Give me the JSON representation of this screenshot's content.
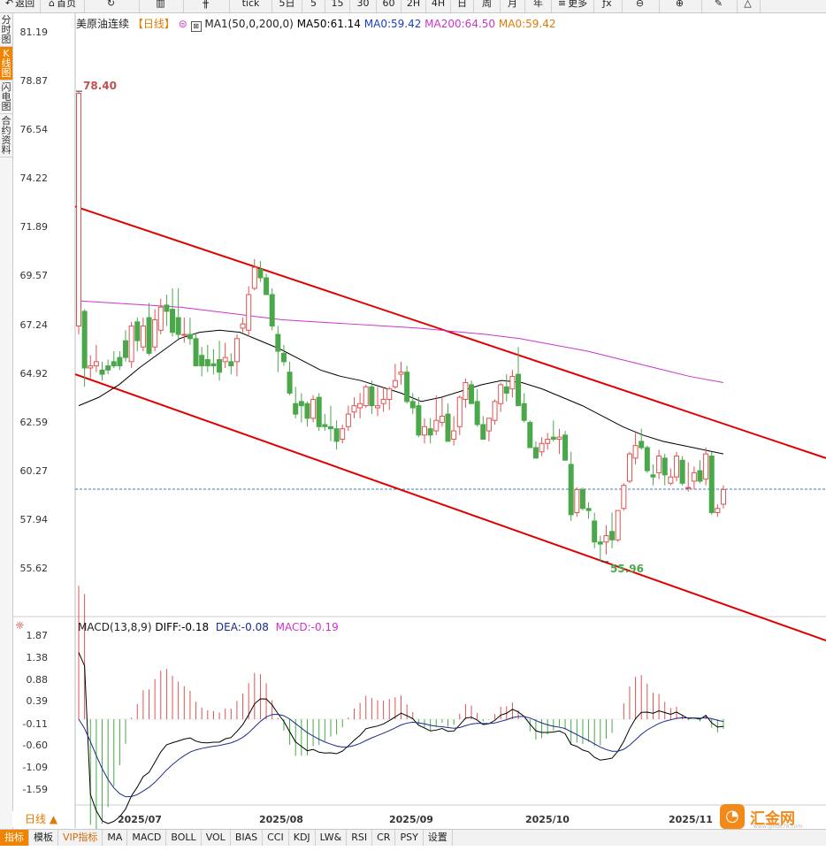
{
  "toolbar": {
    "items": [
      {
        "label": "返回",
        "icon": "back-arrow-icon"
      },
      {
        "label": "首页",
        "icon": "home-icon"
      },
      {
        "label": "",
        "icon": "refresh-icon"
      },
      {
        "label": "",
        "icon": "bar-chart-icon"
      },
      {
        "label": "",
        "icon": "candlestick-icon"
      },
      {
        "label": "tick",
        "icon": ""
      },
      {
        "label": "5日",
        "icon": ""
      },
      {
        "label": "5",
        "icon": ""
      },
      {
        "label": "15",
        "icon": ""
      },
      {
        "label": "30",
        "icon": ""
      },
      {
        "label": "60",
        "icon": ""
      },
      {
        "label": "2H",
        "icon": ""
      },
      {
        "label": "4H",
        "icon": ""
      },
      {
        "label": "日",
        "icon": ""
      },
      {
        "label": "周",
        "icon": ""
      },
      {
        "label": "月",
        "icon": ""
      },
      {
        "label": "年",
        "icon": ""
      },
      {
        "label": "更多",
        "icon": "menu-icon"
      },
      {
        "label": "",
        "icon": "formula-icon"
      },
      {
        "label": "",
        "icon": "zoom-out-icon"
      },
      {
        "label": "",
        "icon": "zoom-in-icon"
      },
      {
        "label": "",
        "icon": "pen-icon"
      },
      {
        "label": "",
        "icon": "triangle-icon"
      }
    ]
  },
  "sidebar": {
    "items": [
      {
        "label": "分\n时\n图",
        "active": false
      },
      {
        "label": "K\n线\n图",
        "active": true
      },
      {
        "label": "闪\n电\n图",
        "active": false
      },
      {
        "label": "合\n约\n资\n料",
        "active": false
      }
    ]
  },
  "legend": {
    "instrument": "美原油连续",
    "period": "【日线】",
    "ma_settings": "MA1(50,0,200,0)",
    "ma50": "MA50:61.14",
    "ma0_blue": "MA0:59.42",
    "ma200": "MA200:64.50",
    "ma0_orange": "MA0:59.42"
  },
  "macd_legend": {
    "name": "MACD(13,8,9)",
    "diff": "DIFF:-0.18",
    "dea": "DEA:-0.08",
    "macd": "MACD:-0.19"
  },
  "price_axis": [
    "81.19",
    "78.87",
    "76.54",
    "74.22",
    "71.89",
    "69.57",
    "67.24",
    "64.92",
    "62.59",
    "60.27",
    "57.94",
    "55.62"
  ],
  "macd_axis": [
    "1.87",
    "1.38",
    "0.88",
    "0.39",
    "-0.11",
    "-0.60",
    "-1.09",
    "-1.59"
  ],
  "x_axis": [
    "2025/07",
    "2025/08",
    "2025/09",
    "2025/10",
    "2025/11"
  ],
  "annotations": {
    "high": "78.40",
    "low": "55.96"
  },
  "bottom_bar": {
    "period_button": "日线 ▲",
    "tabs": [
      "指标",
      "模板",
      "VIP指标",
      "MA",
      "MACD",
      "BOLL",
      "VOL",
      "BIAS",
      "CCI",
      "KDJ",
      "LW&",
      "RSI",
      "CR",
      "PSY",
      "设置"
    ]
  },
  "logo": {
    "name": "汇金网",
    "url": "www.gold678.com"
  },
  "colors": {
    "up": "#e05252",
    "down": "#4aa84a",
    "ma50": "#000000",
    "ma200": "#cc33cc",
    "channel": "#e00000",
    "current_price_line": "#3a79c6",
    "accent": "#f08300",
    "diff": "#000000",
    "dea": "#1a2b8a"
  },
  "chart_data": {
    "type": "candlestick",
    "price_range": [
      55.62,
      81.19
    ],
    "current_price": 59.42,
    "candles_ohlc_approx": [
      [
        67.2,
        78.4,
        66.8,
        78.3
      ],
      [
        67.9,
        68.0,
        64.3,
        65.2
      ],
      [
        65.2,
        65.8,
        64.7,
        65.3
      ],
      [
        65.3,
        66.3,
        65.0,
        65.5
      ],
      [
        65.1,
        65.5,
        64.6,
        64.9
      ],
      [
        65.3,
        65.6,
        64.9,
        65.1
      ],
      [
        65.5,
        66.0,
        65.2,
        65.3
      ],
      [
        65.7,
        66.0,
        65.1,
        65.3
      ],
      [
        66.5,
        67.0,
        65.5,
        65.7
      ],
      [
        65.5,
        67.4,
        65.2,
        67.2
      ],
      [
        67.4,
        67.6,
        66.0,
        66.5
      ],
      [
        66.2,
        67.6,
        66.0,
        67.2
      ],
      [
        67.6,
        68.3,
        65.8,
        65.9
      ],
      [
        66.2,
        68.0,
        66.0,
        67.5
      ],
      [
        67.0,
        68.5,
        66.8,
        68.1
      ],
      [
        68.2,
        68.7,
        67.2,
        67.9
      ],
      [
        68.0,
        69.0,
        66.7,
        66.9
      ],
      [
        67.6,
        69.0,
        66.6,
        66.8
      ],
      [
        66.8,
        67.6,
        66.4,
        66.8
      ],
      [
        66.8,
        67.6,
        66.3,
        66.6
      ],
      [
        66.6,
        66.9,
        65.3,
        65.3
      ],
      [
        65.8,
        66.2,
        64.8,
        65.3
      ],
      [
        65.6,
        66.3,
        65.0,
        65.3
      ],
      [
        65.4,
        66.1,
        64.9,
        65.3
      ],
      [
        65.6,
        66.5,
        64.6,
        65.0
      ],
      [
        65.5,
        66.4,
        65.2,
        65.7
      ],
      [
        65.5,
        65.9,
        64.9,
        65.3
      ],
      [
        65.5,
        66.8,
        64.8,
        66.6
      ],
      [
        67.1,
        67.6,
        66.9,
        67.3
      ],
      [
        67.0,
        69.1,
        66.7,
        68.7
      ],
      [
        69.0,
        70.4,
        68.9,
        70.0
      ],
      [
        69.9,
        70.3,
        69.3,
        69.5
      ],
      [
        69.5,
        69.7,
        68.7,
        68.7
      ],
      [
        68.7,
        69.0,
        67.0,
        67.2
      ],
      [
        66.8,
        67.2,
        65.0,
        66.0
      ],
      [
        65.9,
        66.3,
        65.3,
        65.5
      ],
      [
        65.0,
        65.5,
        63.9,
        64.0
      ],
      [
        63.5,
        64.3,
        62.8,
        63.0
      ],
      [
        63.6,
        64.0,
        62.6,
        63.4
      ],
      [
        63.5,
        63.6,
        62.4,
        62.8
      ],
      [
        62.8,
        63.9,
        62.6,
        63.7
      ],
      [
        63.8,
        64.0,
        62.2,
        62.4
      ],
      [
        62.5,
        63.0,
        62.2,
        62.4
      ],
      [
        62.4,
        63.4,
        61.7,
        62.3
      ],
      [
        62.3,
        62.7,
        61.3,
        61.7
      ],
      [
        61.8,
        62.5,
        61.6,
        62.3
      ],
      [
        62.4,
        63.4,
        62.2,
        63.0
      ],
      [
        63.1,
        63.8,
        62.8,
        63.4
      ],
      [
        63.3,
        64.0,
        62.8,
        63.5
      ],
      [
        63.4,
        64.4,
        63.3,
        64.3
      ],
      [
        64.3,
        64.6,
        63.0,
        63.4
      ],
      [
        63.3,
        64.3,
        62.9,
        63.4
      ],
      [
        63.5,
        64.3,
        63.1,
        63.7
      ],
      [
        63.7,
        64.3,
        63.2,
        64.2
      ],
      [
        64.3,
        65.4,
        64.2,
        64.6
      ],
      [
        64.9,
        65.5,
        64.4,
        65.0
      ],
      [
        65.0,
        65.3,
        63.5,
        63.6
      ],
      [
        63.6,
        64.0,
        63.0,
        63.3
      ],
      [
        63.4,
        63.8,
        61.9,
        62.0
      ],
      [
        62.0,
        62.8,
        61.6,
        62.4
      ],
      [
        62.3,
        62.8,
        61.6,
        62.0
      ],
      [
        62.2,
        63.9,
        62.0,
        62.7
      ],
      [
        62.6,
        63.8,
        62.4,
        62.9
      ],
      [
        63.0,
        63.5,
        61.7,
        61.7
      ],
      [
        61.8,
        62.9,
        61.5,
        62.2
      ],
      [
        62.4,
        63.9,
        62.0,
        63.8
      ],
      [
        63.7,
        64.7,
        63.3,
        64.5
      ],
      [
        64.4,
        64.6,
        63.5,
        63.5
      ],
      [
        63.6,
        64.2,
        62.4,
        62.5
      ],
      [
        62.5,
        62.9,
        61.8,
        61.8
      ],
      [
        62.2,
        62.8,
        61.7,
        62.8
      ],
      [
        62.7,
        63.7,
        62.5,
        63.6
      ],
      [
        63.5,
        64.5,
        63.1,
        64.4
      ],
      [
        64.3,
        64.9,
        63.6,
        64.0
      ],
      [
        64.2,
        65.1,
        63.8,
        64.8
      ],
      [
        64.9,
        66.2,
        64.7,
        63.4
      ],
      [
        63.5,
        64.0,
        62.6,
        62.7
      ],
      [
        62.6,
        62.7,
        61.4,
        61.4
      ],
      [
        61.4,
        61.7,
        60.9,
        60.9
      ],
      [
        61.2,
        61.9,
        61.0,
        61.6
      ],
      [
        61.6,
        62.1,
        61.3,
        61.8
      ],
      [
        61.9,
        62.7,
        61.7,
        61.8
      ],
      [
        61.8,
        62.3,
        61.1,
        61.9
      ],
      [
        62.0,
        62.2,
        60.8,
        60.8
      ],
      [
        60.6,
        61.2,
        57.9,
        58.2
      ],
      [
        58.3,
        59.5,
        58.1,
        59.4
      ],
      [
        59.4,
        59.5,
        58.4,
        58.5
      ],
      [
        58.5,
        58.8,
        58.0,
        58.4
      ],
      [
        57.9,
        58.3,
        56.6,
        56.9
      ],
      [
        56.9,
        57.2,
        55.96,
        56.8
      ],
      [
        56.9,
        57.7,
        56.3,
        57.2
      ],
      [
        57.4,
        58.3,
        56.6,
        57.0
      ],
      [
        57.0,
        58.4,
        56.9,
        58.4
      ],
      [
        58.5,
        59.7,
        58.4,
        59.6
      ],
      [
        59.8,
        61.2,
        59.7,
        61.1
      ],
      [
        60.9,
        62.1,
        60.6,
        61.5
      ],
      [
        61.7,
        62.3,
        61.3,
        61.4
      ],
      [
        61.4,
        61.5,
        60.2,
        60.3
      ],
      [
        60.1,
        60.6,
        59.6,
        60.0
      ],
      [
        60.2,
        61.3,
        59.9,
        61.0
      ],
      [
        60.9,
        61.1,
        59.6,
        60.1
      ],
      [
        59.7,
        60.4,
        59.6,
        60.0
      ],
      [
        60.0,
        61.2,
        59.8,
        61.0
      ],
      [
        60.8,
        61.0,
        59.6,
        59.7
      ],
      [
        59.5,
        60.7,
        59.3,
        59.5
      ],
      [
        59.8,
        60.5,
        59.4,
        60.2
      ],
      [
        60.3,
        60.8,
        59.7,
        59.8
      ],
      [
        59.9,
        61.4,
        59.6,
        61.1
      ],
      [
        61.0,
        61.2,
        58.2,
        58.3
      ],
      [
        58.3,
        58.7,
        58.1,
        58.5
      ],
      [
        58.7,
        59.6,
        58.5,
        59.4
      ]
    ],
    "ma50_approx": [
      63.4,
      63.8,
      64.4,
      65.2,
      65.9,
      66.6,
      66.9,
      67.0,
      66.9,
      66.5,
      66.1,
      65.6,
      65.1,
      64.8,
      64.6,
      64.3,
      64.0,
      63.6,
      63.8,
      64.1,
      64.4,
      64.6,
      64.5,
      64.2,
      63.8,
      63.4,
      62.9,
      62.4,
      62.0,
      61.7,
      61.5,
      61.3,
      61.1
    ],
    "ma200_approx": [
      68.4,
      68.3,
      68.2,
      68.1,
      67.9,
      67.7,
      67.5,
      67.4,
      67.3,
      67.2,
      67.1,
      66.95,
      66.8,
      66.6,
      66.3,
      66.0,
      65.6,
      65.2,
      64.8,
      64.5
    ],
    "channel_upper": [
      [
        0,
        72.9
      ],
      [
        1,
        60.9
      ]
    ],
    "channel_lower": [
      [
        0,
        64.9
      ],
      [
        1,
        52.2
      ]
    ],
    "macd_range": [
      -1.59,
      1.87
    ]
  }
}
